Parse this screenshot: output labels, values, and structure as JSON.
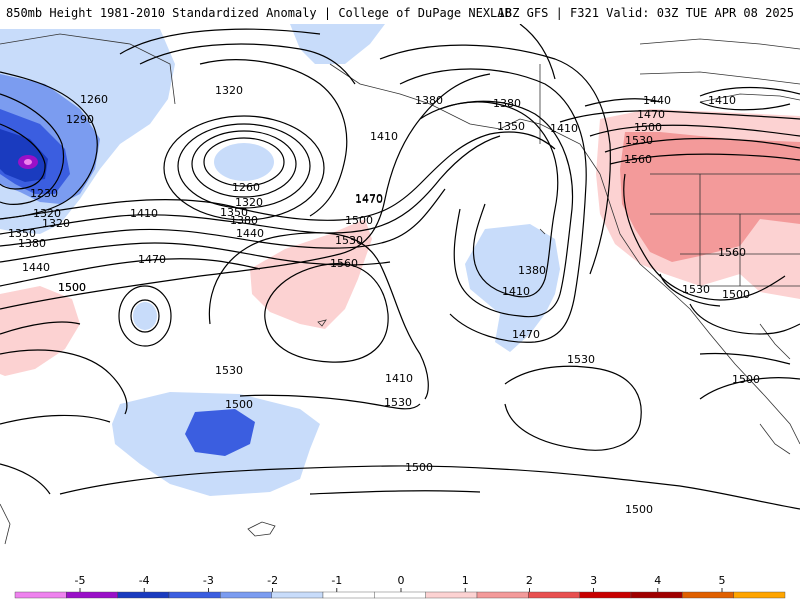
{
  "title": {
    "left": "850mb Height 1981-2010 Standardized Anomaly | College of DuPage NEXLAB",
    "right": "18Z GFS | F321 Valid: 03Z TUE APR 08 2025"
  },
  "contour_labels": [
    "1260",
    "1290",
    "1320",
    "1230",
    "1320",
    "1350",
    "1380",
    "1410",
    "1440",
    "1470",
    "1500",
    "1320",
    "1260",
    "1320",
    "1350",
    "1380",
    "1410",
    "1440",
    "1470",
    "1500",
    "1530",
    "1560",
    "1530",
    "1380",
    "1410",
    "1350",
    "1380",
    "1470",
    "1380",
    "1410",
    "1470",
    "1410",
    "1440",
    "1410",
    "1470",
    "1500",
    "1530",
    "1560",
    "1560",
    "1530",
    "1500",
    "1530",
    "1500",
    "1500",
    "1500",
    "1530",
    "1500",
    "1500"
  ],
  "colorbar": {
    "ticks": [
      "-5",
      "-4",
      "-3",
      "-2",
      "-1",
      "0",
      "1",
      "2",
      "3",
      "4",
      "5"
    ],
    "colors": [
      "#ee82ee",
      "#9a10c8",
      "#1a3bbf",
      "#3b5ee0",
      "#7b9cf0",
      "#c8dcfa",
      "#ffffff",
      "#ffffff",
      "#fcd2d2",
      "#f39a9a",
      "#e85050",
      "#c80000",
      "#a00000",
      "#e06000",
      "#ffa500"
    ]
  },
  "anomaly_colors": {
    "neg_light": "#c8dcfa",
    "neg_mid": "#7b9cf0",
    "neg_strong": "#3b5ee0",
    "neg_deep": "#1a3bbf",
    "neg_extreme": "#9a10c8",
    "pos_light": "#fcd2d2",
    "pos_mid": "#f39a9a"
  }
}
